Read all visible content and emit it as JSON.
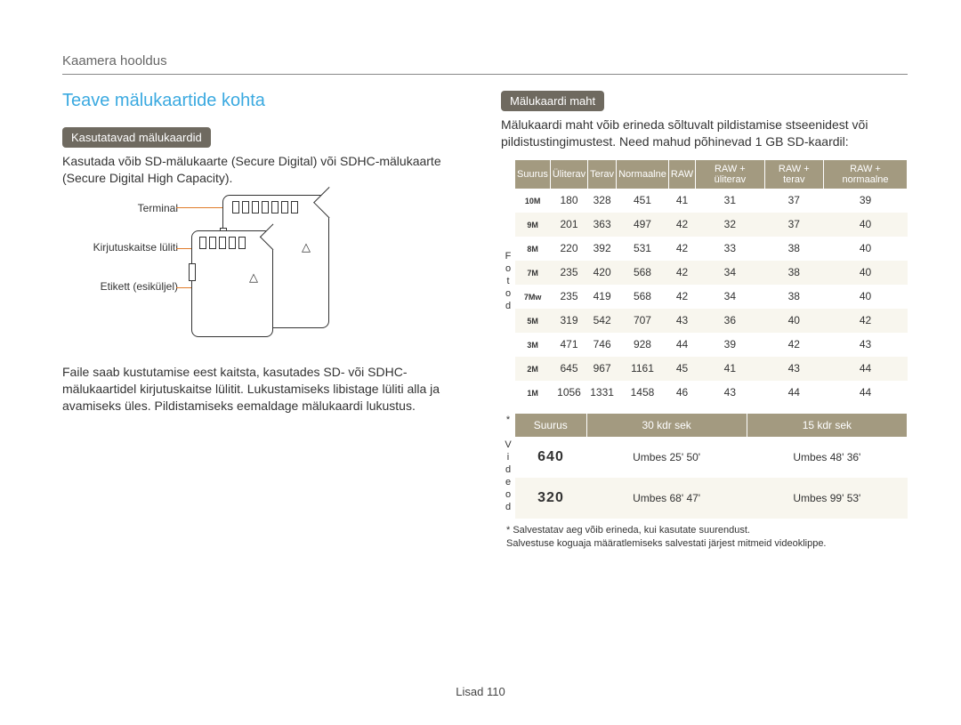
{
  "header": "Kaamera hooldus",
  "section_title": "Teave mälukaartide kohta",
  "left": {
    "pill": "Kasutatavad mälukaardid",
    "intro": "Kasutada võib SD-mälukaarte (Secure Digital) või SDHC-mälukaarte (Secure Digital High Capacity).",
    "labels": {
      "terminal": "Terminal",
      "lock": "Kirjutuskaitse lüliti",
      "etikett": "Etikett (esiküljel)"
    },
    "bottom": "Faile saab kustutamise eest kaitsta, kasutades SD- või SDHC-mälukaartidel kirjutuskaitse lülitit. Lukustamiseks libistage lüliti alla ja avamiseks üles. Pildistamiseks eemaldage mälukaardi lukustus."
  },
  "right": {
    "pill": "Mälukaardi maht",
    "intro": "Mälukaardi maht võib erineda sõltuvalt pildistamise stseenidest või pildistustingimustest. Need mahud põhinevad 1 GB SD-kaardil:",
    "photo_side": "Fotod",
    "photo_headers": [
      "Suurus",
      "Üliterav",
      "Terav",
      "Normaalne",
      "RAW",
      "RAW + üliterav",
      "RAW + terav",
      "RAW + normaalne"
    ],
    "photo_rows": [
      {
        "icon": "10M",
        "vals": [
          180,
          328,
          451,
          41,
          31,
          37,
          39
        ]
      },
      {
        "icon": "9M",
        "vals": [
          201,
          363,
          497,
          42,
          32,
          37,
          40
        ]
      },
      {
        "icon": "8M",
        "vals": [
          220,
          392,
          531,
          42,
          33,
          38,
          40
        ]
      },
      {
        "icon": "7M",
        "vals": [
          235,
          420,
          568,
          42,
          34,
          38,
          40
        ]
      },
      {
        "icon": "7Mw",
        "vals": [
          235,
          419,
          568,
          42,
          34,
          38,
          40
        ]
      },
      {
        "icon": "5M",
        "vals": [
          319,
          542,
          707,
          43,
          36,
          40,
          42
        ]
      },
      {
        "icon": "3M",
        "vals": [
          471,
          746,
          928,
          44,
          39,
          42,
          43
        ]
      },
      {
        "icon": "2M",
        "vals": [
          645,
          967,
          1161,
          45,
          41,
          43,
          44
        ]
      },
      {
        "icon": "1M",
        "vals": [
          1056,
          1331,
          1458,
          46,
          43,
          44,
          44
        ]
      }
    ],
    "video_side": "* Videod",
    "video_headers": [
      "Suurus",
      "30 kdr sek",
      "15 kdr sek"
    ],
    "video_rows": [
      {
        "size": "640",
        "c1": "Umbes 25' 50'",
        "c2": "Umbes 48' 36'"
      },
      {
        "size": "320",
        "c1": "Umbes 68' 47'",
        "c2": "Umbes 99' 53'"
      }
    ],
    "footnote1": "* Salvestatav aeg võib erineda, kui kasutate suurendust.",
    "footnote2": "  Salvestuse koguaja määratlemiseks salvestati järjest mitmeid videoklippe."
  },
  "footer": {
    "label": "Lisad",
    "page": "110"
  }
}
